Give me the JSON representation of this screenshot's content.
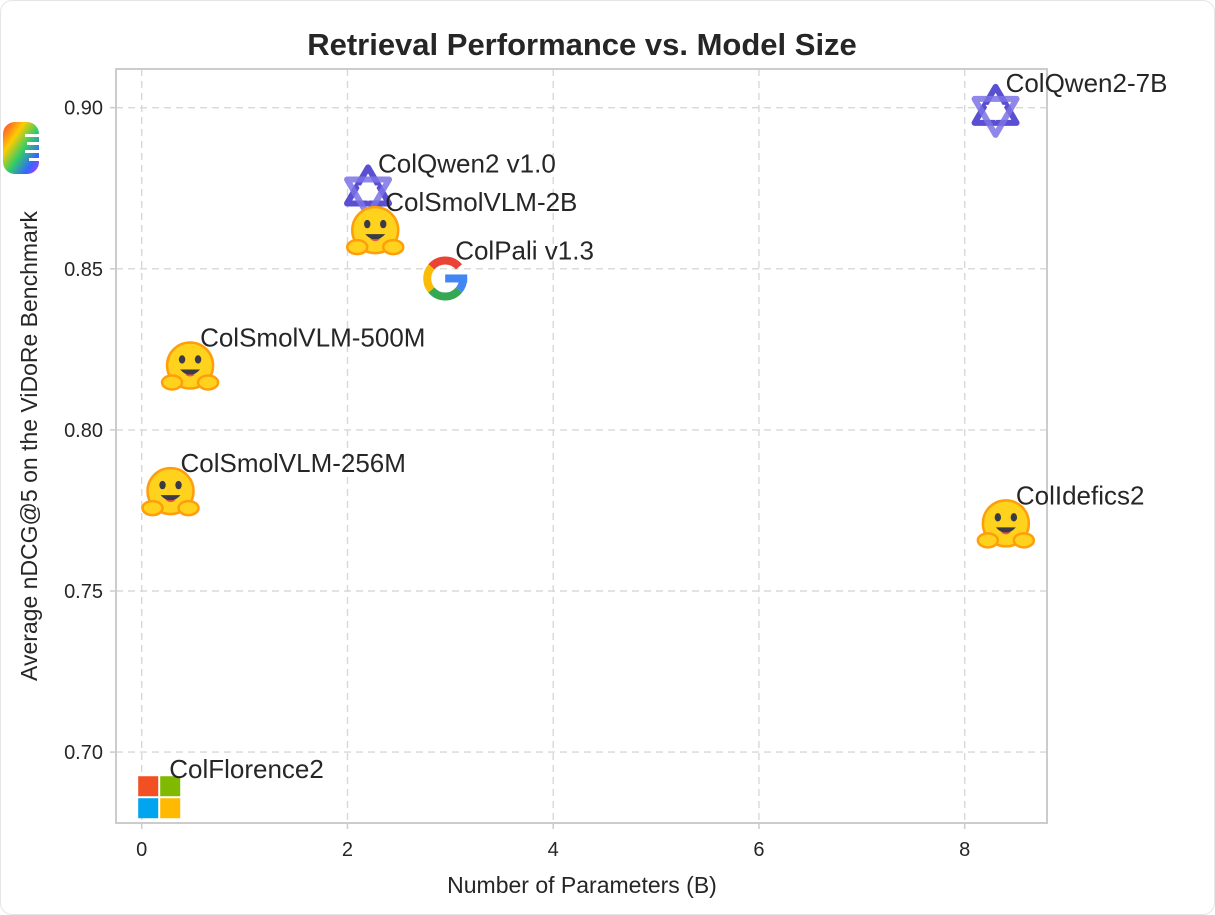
{
  "chart_data": {
    "type": "scatter",
    "title": "Retrieval Performance vs. Model Size",
    "xlabel": "Number of Parameters (B)",
    "ylabel": "Average nDCG@5 on the ViDoRe Benchmark",
    "xlim": [
      -0.25,
      8.8
    ],
    "ylim": [
      0.678,
      0.912
    ],
    "xticks": [
      0,
      2,
      4,
      6,
      8
    ],
    "yticks": [
      0.7,
      0.75,
      0.8,
      0.85,
      0.9
    ],
    "grid": true,
    "points": [
      {
        "label": "ColQwen2-7B",
        "x": 8.3,
        "y": 0.899,
        "icon": "qwen-logo-icon"
      },
      {
        "label": "ColQwen2 v1.0",
        "x": 2.2,
        "y": 0.874,
        "icon": "qwen-logo-icon"
      },
      {
        "label": "ColSmolVLM-2B",
        "x": 2.27,
        "y": 0.862,
        "icon": "hugging-face-icon"
      },
      {
        "label": "ColPali v1.3",
        "x": 2.95,
        "y": 0.847,
        "icon": "google-logo-icon"
      },
      {
        "label": "ColSmolVLM-500M",
        "x": 0.47,
        "y": 0.82,
        "icon": "hugging-face-icon"
      },
      {
        "label": "ColSmolVLM-256M",
        "x": 0.28,
        "y": 0.781,
        "icon": "hugging-face-icon"
      },
      {
        "label": "ColIdefics2",
        "x": 8.4,
        "y": 0.771,
        "icon": "hugging-face-icon"
      },
      {
        "label": "ColFlorence2",
        "x": 0.17,
        "y": 0.686,
        "icon": "microsoft-logo-icon"
      }
    ],
    "colors": {
      "hf_face": "#FFD21E",
      "hf_outline": "#FF9D0B",
      "qwen": "#5B4FD1",
      "google_blue": "#4285F4",
      "google_red": "#EA4335",
      "google_yellow": "#FBBC05",
      "google_green": "#34A853",
      "ms_red": "#F25022",
      "ms_green": "#7FBA00",
      "ms_blue": "#00A4EF",
      "ms_yellow": "#FFB900"
    }
  }
}
